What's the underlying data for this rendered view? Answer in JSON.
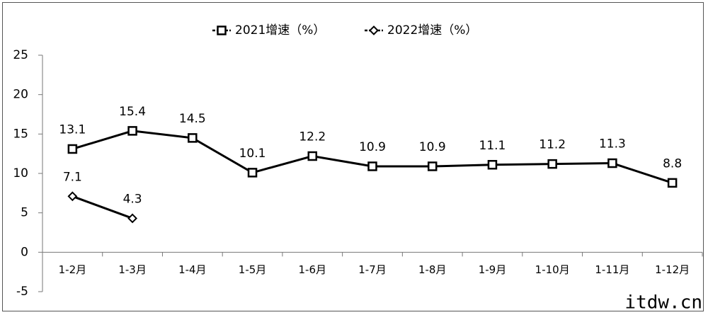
{
  "chart_data": {
    "type": "line",
    "categories": [
      "1-2月",
      "1-3月",
      "1-4月",
      "1-5月",
      "1-6月",
      "1-7月",
      "1-8月",
      "1-9月",
      "1-10月",
      "1-11月",
      "1-12月"
    ],
    "series": [
      {
        "name": "2021增速（%）",
        "color": "#000000",
        "marker": "square",
        "values": [
          13.1,
          15.4,
          14.5,
          10.1,
          12.2,
          10.9,
          10.9,
          11.1,
          11.2,
          11.3,
          8.8
        ]
      },
      {
        "name": "2022增速（%）",
        "color": "#000000",
        "marker": "diamond",
        "values": [
          7.1,
          4.3,
          null,
          null,
          null,
          null,
          null,
          null,
          null,
          null,
          null
        ]
      }
    ],
    "ylim": [
      -5,
      25
    ],
    "yticks": [
      -5,
      0,
      5,
      10,
      15,
      20,
      25
    ],
    "legend": "top",
    "data_labels": true,
    "watermark": "itdw.cn"
  }
}
